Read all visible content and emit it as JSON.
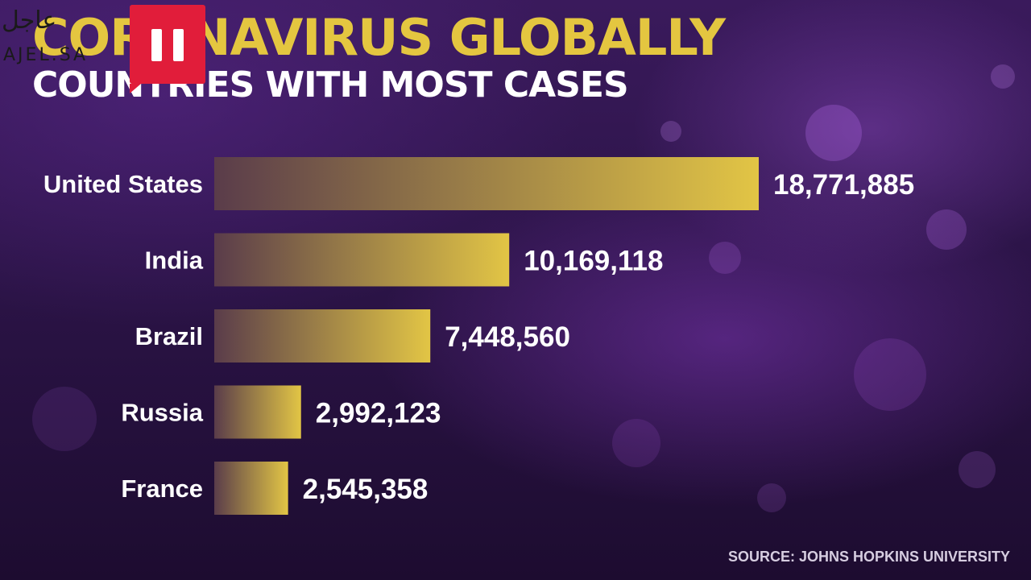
{
  "title": "CORONAVIRUS GLOBALLY",
  "subtitle": "COUNTRIES WITH MOST CASES",
  "source": "SOURCE: JOHNS HOPKINS UNIVERSITY",
  "watermark": {
    "arabic": "عاجل",
    "latin": "AJEL.SA"
  },
  "colors": {
    "title": "#e4c640",
    "bar_light": "#e2c545",
    "bar_dark": "#5a3c4a",
    "badge": "#e11d3a"
  },
  "icons": {
    "badge": "pause-icon"
  },
  "chart_data": {
    "type": "bar",
    "orientation": "horizontal",
    "title": "CORONAVIRUS GLOBALLY",
    "subtitle": "COUNTRIES WITH MOST CASES",
    "xlabel": "",
    "ylabel": "",
    "categories": [
      "United States",
      "India",
      "Brazil",
      "Russia",
      "France"
    ],
    "values": [
      18771885,
      10169118,
      7448560,
      2992123,
      2545358
    ],
    "value_labels": [
      "18,771,885",
      "10,169,118",
      "7,448,560",
      "2,992,123",
      "2,545,358"
    ],
    "grid": false,
    "legend": "none",
    "xlim": [
      0,
      18771885
    ]
  }
}
